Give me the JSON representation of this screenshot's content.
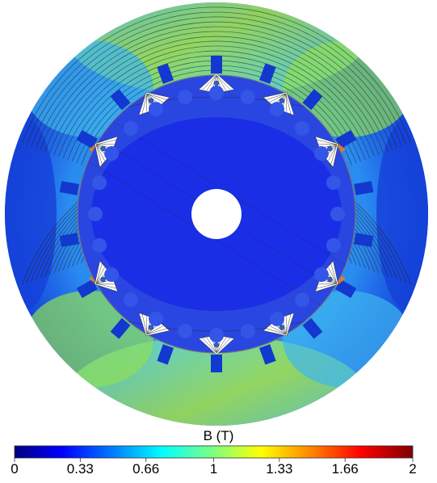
{
  "colorbar": {
    "title": "B (T)",
    "min": 0,
    "max": 2,
    "tick_labels": [
      "0",
      "0.33",
      "0.66",
      "1",
      "1.33",
      "1.66",
      "2"
    ],
    "tick_values": [
      0,
      0.33,
      0.66,
      1,
      1.33,
      1.66,
      2
    ],
    "colormap": [
      "#00007f",
      "#0000ff",
      "#007fff",
      "#00ffff",
      "#7fff7f",
      "#ffff00",
      "#ff7f00",
      "#ff0000",
      "#7f0000"
    ]
  },
  "field_map": {
    "quantity": "B (T)",
    "stator_slots": 18,
    "rotor_slots": 24,
    "colors": {
      "rotor_core": "#1a2ee6",
      "stator_yoke_low": "#1f6fe8",
      "stator_yoke_high": "#9be23a",
      "air_gap_peak": "#e8321a",
      "contour": "#222222",
      "shaft_hole": "#ffffff"
    }
  }
}
